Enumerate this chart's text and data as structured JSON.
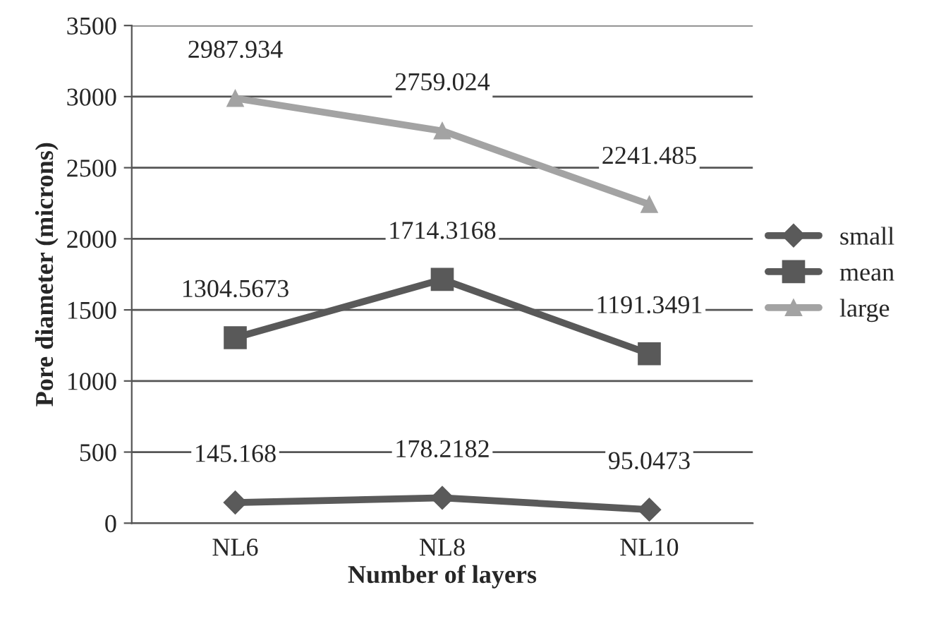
{
  "chart_data": {
    "type": "line",
    "xlabel": "Number of layers",
    "ylabel": "Pore diameter (microns)",
    "categories": [
      "NL6",
      "NL8",
      "NL10"
    ],
    "series": [
      {
        "name": "small",
        "color": "#5a5a5a",
        "marker": "diamond",
        "values": [
          145.168,
          178.2182,
          95.0473
        ]
      },
      {
        "name": "mean",
        "color": "#595959",
        "marker": "square",
        "values": [
          1304.5673,
          1714.3168,
          1191.3491
        ]
      },
      {
        "name": "large",
        "color": "#a3a3a3",
        "marker": "triangle",
        "values": [
          2987.934,
          2759.024,
          2241.485
        ]
      }
    ],
    "ylim": [
      0,
      3500
    ],
    "yticks": [
      0,
      500,
      1000,
      1500,
      2000,
      2500,
      3000,
      3500
    ],
    "grid": "y",
    "legend": "right",
    "data_labels": true,
    "line_style": "solid"
  }
}
